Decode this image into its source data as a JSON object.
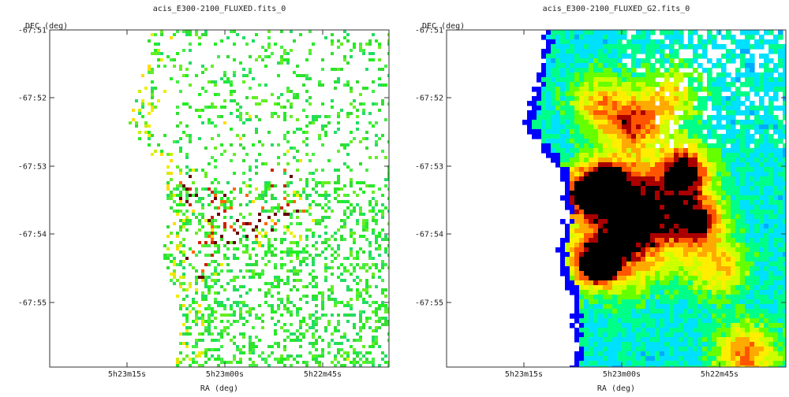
{
  "colors": {
    "frame": "#333333",
    "background": "#ffffff",
    "colormap": [
      "#0000ff",
      "#00aaff",
      "#00e0ff",
      "#00ff88",
      "#66ff00",
      "#ccff00",
      "#ffee00",
      "#ffaa00",
      "#ff5500",
      "#aa0000",
      "#000000"
    ]
  },
  "chart_data": [
    {
      "type": "heatmap",
      "title": "acis_E300-2100_FLUXED.fits_0",
      "xlabel": "RA (deg)",
      "ylabel": "DEC (deg)",
      "x_ticks": [
        "5h23m15s",
        "5h23m00s",
        "5h22m45s"
      ],
      "y_ticks": [
        "-67:51",
        "-67:52",
        "-67:53",
        "-67:54",
        "-67:55"
      ],
      "rendering": "sparse binned pixels, mostly green/yellow with occasional red"
    },
    {
      "type": "heatmap",
      "title": "acis_E300-2100_FLUXED_G2.fits_0",
      "xlabel": "RA (deg)",
      "ylabel": "DEC (deg)",
      "x_ticks": [
        "5h23m15s",
        "5h23m00s",
        "5h22m45s"
      ],
      "y_ticks": [
        "-67:51",
        "-67:52",
        "-67:53",
        "-67:54",
        "-67:55"
      ],
      "rendering": "gaussian-smoothed, blue-to-red continuous colormap"
    }
  ]
}
